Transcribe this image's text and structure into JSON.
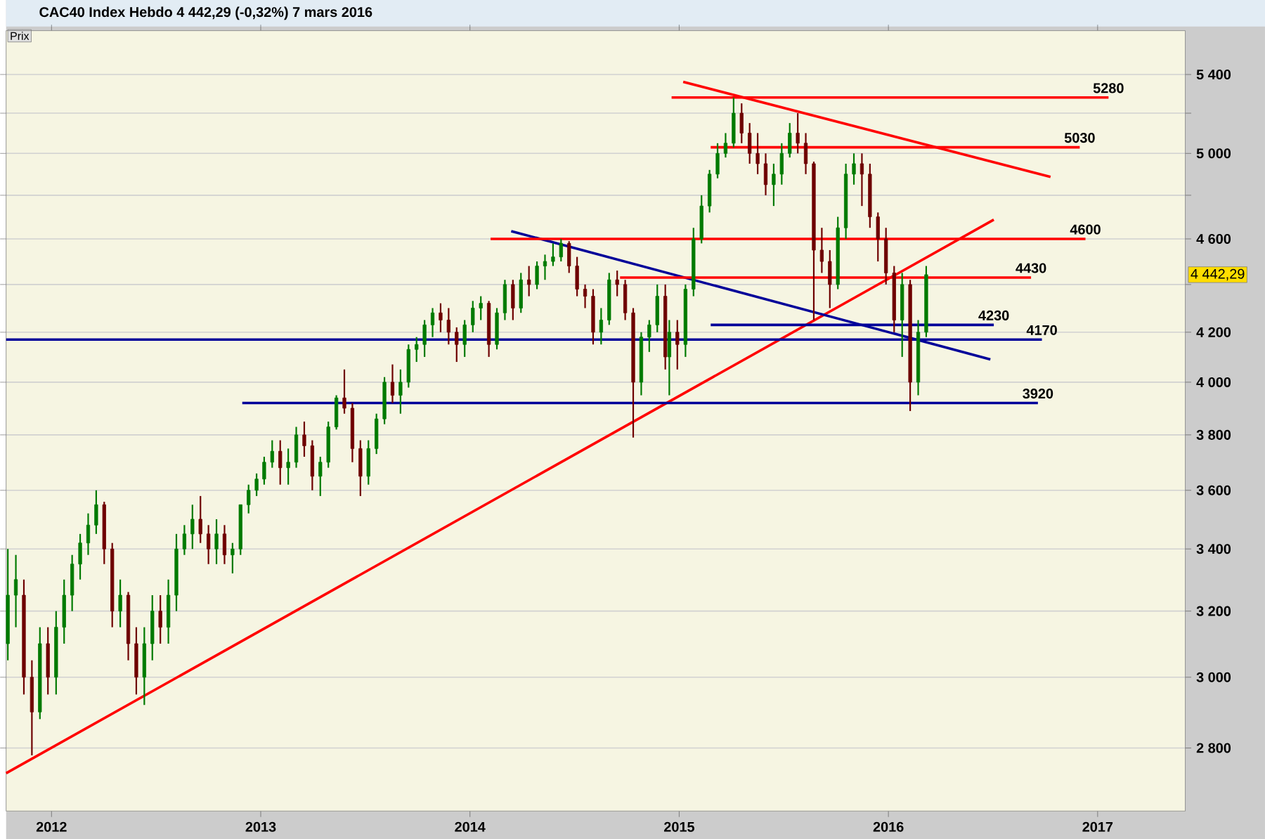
{
  "chart_data": {
    "type": "candlestick",
    "title": "CAC40 Index   Hebdo   4 442,29 (-0,32%)   7 mars 2016",
    "ylabel": "Prix",
    "log": true,
    "grid": "y",
    "xlim": [
      "2011-10-14",
      "2017-06-03"
    ],
    "ylim": [
      2633,
      5636
    ],
    "xticks": [
      "2012",
      "2013",
      "2014",
      "2015",
      "2016",
      "2017"
    ],
    "yticks": [
      {
        "value": 2800,
        "label": "2 800"
      },
      {
        "value": 3000,
        "label": "3 000"
      },
      {
        "value": 3200,
        "label": "3 200"
      },
      {
        "value": 3400,
        "label": "3 400"
      },
      {
        "value": 3600,
        "label": "3 600"
      },
      {
        "value": 3800,
        "label": "3 800"
      },
      {
        "value": 4000,
        "label": "4 000"
      },
      {
        "value": 4200,
        "label": "4 200"
      },
      {
        "value": 4400,
        "label": null
      },
      {
        "value": 4600,
        "label": "4 600"
      },
      {
        "value": 4800,
        "label": null
      },
      {
        "value": 5000,
        "label": "5 000"
      },
      {
        "value": 5200,
        "label": null
      },
      {
        "value": 5400,
        "label": "5 400"
      }
    ],
    "x": [
      "2011-10-17",
      "2011-10-31",
      "2011-11-14",
      "2011-11-28",
      "2011-12-12",
      "2011-12-26",
      "2012-01-09",
      "2012-01-23",
      "2012-02-06",
      "2012-02-20",
      "2012-03-05",
      "2012-03-19",
      "2012-04-02",
      "2012-04-16",
      "2012-04-30",
      "2012-05-14",
      "2012-05-28",
      "2012-06-11",
      "2012-06-25",
      "2012-07-09",
      "2012-07-23",
      "2012-08-06",
      "2012-08-20",
      "2012-09-03",
      "2012-09-17",
      "2012-10-01",
      "2012-10-15",
      "2012-10-29",
      "2012-11-12",
      "2012-11-26",
      "2012-12-10",
      "2012-12-24",
      "2013-01-07",
      "2013-01-21",
      "2013-02-04",
      "2013-02-18",
      "2013-03-04",
      "2013-03-18",
      "2013-04-01",
      "2013-04-15",
      "2013-04-29",
      "2013-05-13",
      "2013-05-27",
      "2013-06-10",
      "2013-06-24",
      "2013-07-08",
      "2013-07-22",
      "2013-08-05",
      "2013-08-19",
      "2013-09-02",
      "2013-09-16",
      "2013-09-30",
      "2013-10-14",
      "2013-10-28",
      "2013-11-11",
      "2013-11-25",
      "2013-12-09",
      "2013-12-23",
      "2014-01-06",
      "2014-01-20",
      "2014-02-03",
      "2014-02-17",
      "2014-03-03",
      "2014-03-17",
      "2014-03-31",
      "2014-04-14",
      "2014-04-28",
      "2014-05-12",
      "2014-05-26",
      "2014-06-09",
      "2014-06-23",
      "2014-07-07",
      "2014-07-21",
      "2014-08-04",
      "2014-08-18",
      "2014-09-01",
      "2014-09-15",
      "2014-09-29",
      "2014-10-13",
      "2014-10-27",
      "2014-11-10",
      "2014-11-24",
      "2014-12-08",
      "2014-12-15",
      "2014-12-29",
      "2015-01-12",
      "2015-01-26",
      "2015-02-09",
      "2015-02-23",
      "2015-03-09",
      "2015-03-23",
      "2015-04-06",
      "2015-04-20",
      "2015-05-04",
      "2015-05-18",
      "2015-06-01",
      "2015-06-15",
      "2015-06-29",
      "2015-07-13",
      "2015-07-27",
      "2015-08-10",
      "2015-08-24",
      "2015-09-07",
      "2015-09-21",
      "2015-10-05",
      "2015-10-19",
      "2015-11-02",
      "2015-11-16",
      "2015-11-30",
      "2015-12-14",
      "2015-12-28",
      "2016-01-11",
      "2016-01-25",
      "2016-02-08",
      "2016-02-22",
      "2016-03-07"
    ],
    "ohlc": [
      [
        3100,
        3400,
        3050,
        3250
      ],
      [
        3250,
        3380,
        3150,
        3300
      ],
      [
        3250,
        3300,
        2950,
        3000
      ],
      [
        3000,
        3050,
        2780,
        2900
      ],
      [
        2900,
        3150,
        2880,
        3100
      ],
      [
        3100,
        3150,
        2950,
        3000
      ],
      [
        3000,
        3200,
        2950,
        3150
      ],
      [
        3150,
        3300,
        3100,
        3250
      ],
      [
        3250,
        3380,
        3200,
        3350
      ],
      [
        3350,
        3450,
        3300,
        3420
      ],
      [
        3420,
        3520,
        3380,
        3480
      ],
      [
        3480,
        3600,
        3450,
        3550
      ],
      [
        3550,
        3560,
        3350,
        3400
      ],
      [
        3400,
        3420,
        3150,
        3200
      ],
      [
        3200,
        3300,
        3150,
        3250
      ],
      [
        3250,
        3260,
        3050,
        3100
      ],
      [
        3100,
        3150,
        2950,
        3000
      ],
      [
        3000,
        3150,
        2920,
        3100
      ],
      [
        3100,
        3250,
        3050,
        3200
      ],
      [
        3200,
        3250,
        3100,
        3150
      ],
      [
        3150,
        3300,
        3100,
        3250
      ],
      [
        3250,
        3450,
        3200,
        3400
      ],
      [
        3400,
        3480,
        3380,
        3450
      ],
      [
        3450,
        3550,
        3400,
        3500
      ],
      [
        3500,
        3580,
        3420,
        3450
      ],
      [
        3450,
        3480,
        3350,
        3400
      ],
      [
        3400,
        3500,
        3350,
        3450
      ],
      [
        3450,
        3480,
        3350,
        3380
      ],
      [
        3380,
        3420,
        3320,
        3400
      ],
      [
        3400,
        3550,
        3380,
        3550
      ],
      [
        3550,
        3620,
        3520,
        3600
      ],
      [
        3600,
        3660,
        3580,
        3640
      ],
      [
        3640,
        3720,
        3620,
        3700
      ],
      [
        3700,
        3780,
        3680,
        3740
      ],
      [
        3740,
        3780,
        3620,
        3680
      ],
      [
        3680,
        3750,
        3620,
        3700
      ],
      [
        3700,
        3830,
        3680,
        3800
      ],
      [
        3800,
        3850,
        3720,
        3760
      ],
      [
        3760,
        3780,
        3600,
        3650
      ],
      [
        3650,
        3720,
        3580,
        3700
      ],
      [
        3700,
        3850,
        3680,
        3830
      ],
      [
        3830,
        3950,
        3820,
        3940
      ],
      [
        3940,
        4050,
        3880,
        3900
      ],
      [
        3900,
        3920,
        3700,
        3750
      ],
      [
        3750,
        3780,
        3580,
        3650
      ],
      [
        3650,
        3780,
        3620,
        3750
      ],
      [
        3750,
        3880,
        3730,
        3860
      ],
      [
        3860,
        4020,
        3840,
        4000
      ],
      [
        4000,
        4070,
        3920,
        3950
      ],
      [
        3950,
        4050,
        3880,
        4000
      ],
      [
        4000,
        4150,
        3980,
        4130
      ],
      [
        4130,
        4180,
        4080,
        4150
      ],
      [
        4150,
        4250,
        4100,
        4230
      ],
      [
        4230,
        4300,
        4180,
        4280
      ],
      [
        4280,
        4320,
        4200,
        4250
      ],
      [
        4250,
        4300,
        4150,
        4200
      ],
      [
        4200,
        4220,
        4080,
        4150
      ],
      [
        4150,
        4250,
        4100,
        4230
      ],
      [
        4230,
        4330,
        4200,
        4300
      ],
      [
        4300,
        4350,
        4250,
        4320
      ],
      [
        4320,
        4330,
        4100,
        4150
      ],
      [
        4150,
        4300,
        4130,
        4280
      ],
      [
        4280,
        4420,
        4250,
        4400
      ],
      [
        4400,
        4420,
        4250,
        4300
      ],
      [
        4300,
        4450,
        4280,
        4420
      ],
      [
        4420,
        4480,
        4350,
        4400
      ],
      [
        4400,
        4500,
        4380,
        4480
      ],
      [
        4480,
        4530,
        4420,
        4500
      ],
      [
        4500,
        4580,
        4480,
        4520
      ],
      [
        4520,
        4600,
        4500,
        4580
      ],
      [
        4580,
        4590,
        4450,
        4480
      ],
      [
        4480,
        4520,
        4350,
        4380
      ],
      [
        4380,
        4400,
        4300,
        4350
      ],
      [
        4350,
        4380,
        4150,
        4200
      ],
      [
        4200,
        4300,
        4150,
        4250
      ],
      [
        4250,
        4450,
        4230,
        4420
      ],
      [
        4420,
        4460,
        4350,
        4400
      ],
      [
        4400,
        4420,
        4250,
        4280
      ],
      [
        4280,
        4300,
        3790,
        4000
      ],
      [
        4000,
        4200,
        3950,
        4180
      ],
      [
        4180,
        4250,
        4120,
        4230
      ],
      [
        4230,
        4400,
        4200,
        4350
      ],
      [
        4350,
        4400,
        4050,
        4100
      ],
      [
        4100,
        4250,
        3950,
        4200
      ],
      [
        4200,
        4250,
        4050,
        4150
      ],
      [
        4150,
        4400,
        4100,
        4380
      ],
      [
        4380,
        4650,
        4350,
        4600
      ],
      [
        4600,
        4800,
        4580,
        4750
      ],
      [
        4750,
        4920,
        4720,
        4900
      ],
      [
        4900,
        5050,
        4880,
        5000
      ],
      [
        5000,
        5100,
        4980,
        5050
      ],
      [
        5050,
        5280,
        5030,
        5200
      ],
      [
        5200,
        5250,
        5050,
        5100
      ],
      [
        5100,
        5150,
        4950,
        5000
      ],
      [
        5000,
        5100,
        4900,
        4950
      ],
      [
        4950,
        5000,
        4800,
        4850
      ],
      [
        4850,
        4950,
        4750,
        4900
      ],
      [
        4900,
        5050,
        4850,
        5000
      ],
      [
        5000,
        5150,
        4980,
        5100
      ],
      [
        5100,
        5200,
        5000,
        5050
      ],
      [
        5050,
        5100,
        4900,
        4950
      ],
      [
        4950,
        4960,
        4250,
        4550
      ],
      [
        4550,
        4650,
        4450,
        4500
      ],
      [
        4500,
        4550,
        4300,
        4400
      ],
      [
        4400,
        4700,
        4380,
        4650
      ],
      [
        4650,
        4950,
        4600,
        4900
      ],
      [
        4900,
        5000,
        4850,
        4950
      ],
      [
        4950,
        5000,
        4750,
        4900
      ],
      [
        4900,
        4950,
        4650,
        4700
      ],
      [
        4700,
        4720,
        4500,
        4600
      ],
      [
        4600,
        4650,
        4400,
        4450
      ],
      [
        4450,
        4480,
        4200,
        4250
      ],
      [
        4250,
        4450,
        4100,
        4400
      ],
      [
        4400,
        4420,
        3890,
        4000
      ],
      [
        4000,
        4250,
        3950,
        4200
      ],
      [
        4200,
        4480,
        4180,
        4442.29
      ]
    ],
    "series": [
      {
        "type": "line",
        "color": "#ff0000",
        "x": [
          "2011-10-14",
          "2016-07-03"
        ],
        "values": [
          2732,
          4687
        ]
      },
      {
        "type": "line",
        "color": "#ff0000",
        "x": [
          "2015-01-08",
          "2016-10-10"
        ],
        "values": [
          5361,
          4887
        ]
      },
      {
        "type": "line",
        "color": "#000099",
        "x": [
          "2014-03-14",
          "2016-06-27"
        ],
        "values": [
          4635,
          4090
        ]
      },
      {
        "type": "line",
        "color": "#ff0000",
        "x": [
          "2014-12-19",
          "2017-01-20"
        ],
        "values": [
          5280,
          5280
        ]
      },
      {
        "type": "line",
        "color": "#ff0000",
        "x": [
          "2015-02-25",
          "2016-11-30"
        ],
        "values": [
          5030,
          5030
        ]
      },
      {
        "type": "line",
        "color": "#ff0000",
        "x": [
          "2014-02-06",
          "2016-12-10"
        ],
        "values": [
          4600,
          4600
        ]
      },
      {
        "type": "line",
        "color": "#ff0000",
        "x": [
          "2014-09-20",
          "2016-09-06"
        ],
        "values": [
          4430,
          4430
        ]
      },
      {
        "type": "line",
        "color": "#000099",
        "x": [
          "2015-02-25",
          "2016-07-03"
        ],
        "values": [
          4230,
          4230
        ]
      },
      {
        "type": "line",
        "color": "#000099",
        "x": [
          "2011-10-14",
          "2016-09-25"
        ],
        "values": [
          4170,
          4170
        ]
      },
      {
        "type": "line",
        "color": "#000099",
        "x": [
          "2012-11-29",
          "2016-09-18"
        ],
        "values": [
          3920,
          3920
        ]
      }
    ],
    "annotations": [
      {
        "text": "5280",
        "x": "2017-01-20",
        "y": 5280
      },
      {
        "text": "5030",
        "x": "2016-11-30",
        "y": 5030
      },
      {
        "text": "4600",
        "x": "2016-12-10",
        "y": 4600
      },
      {
        "text": "4430",
        "x": "2016-09-06",
        "y": 4430
      },
      {
        "text": "4230",
        "x": "2016-07-03",
        "y": 4230
      },
      {
        "text": "4170",
        "x": "2016-09-25",
        "y": 4170
      },
      {
        "text": "3920",
        "x": "2016-09-18",
        "y": 3920
      },
      "4 442,29"
    ]
  }
}
